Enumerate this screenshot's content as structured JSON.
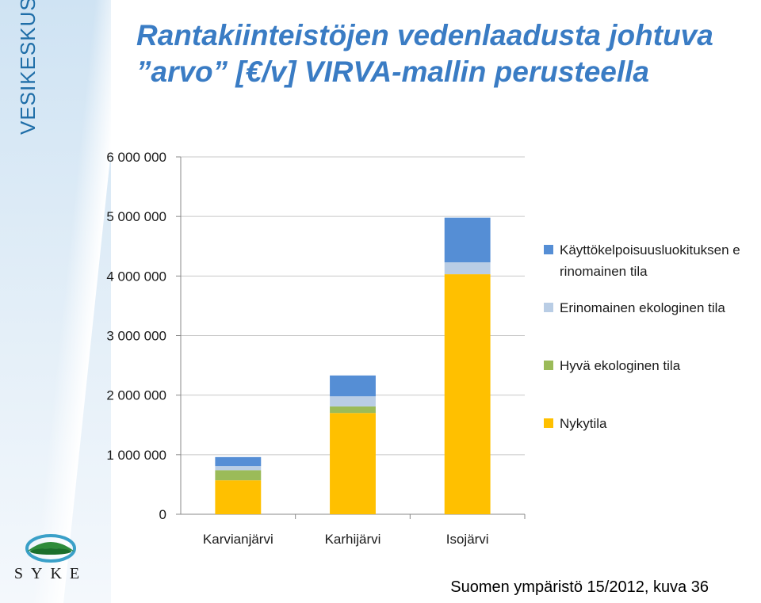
{
  "sidebar": {
    "brand": "VESIKESKUS"
  },
  "title": "Rantakiinteistöjen vedenlaadusta johtuva ”arvo” [€/v] VIRVA-mallin perusteella",
  "logo": {
    "text": "SYKE"
  },
  "caption": "Suomen ympäristö 15/2012, kuva 36",
  "chart_data": {
    "type": "bar",
    "stacked": true,
    "categories": [
      "Karvianjärvi",
      "Karhijärvi",
      "Isojärvi"
    ],
    "ylim": [
      0,
      6000000
    ],
    "yticks": [
      0,
      1000000,
      2000000,
      3000000,
      4000000,
      5000000,
      6000000
    ],
    "ytick_labels": [
      "0",
      "1 000 000",
      "2 000 000",
      "3 000 000",
      "4 000 000",
      "5 000 000",
      "6 000 000"
    ],
    "grid": true,
    "legend_position": "right",
    "series": [
      {
        "name": "Nykytila",
        "color": "#ffc000",
        "values": [
          570000,
          1700000,
          4030000
        ]
      },
      {
        "name": "Hyvä ekologinen tila",
        "color": "#9bbb59",
        "values": [
          170000,
          110000,
          0
        ]
      },
      {
        "name": "Erinomainen ekologinen tila",
        "color": "#b9cde5",
        "values": [
          70000,
          170000,
          200000
        ]
      },
      {
        "name": "Käyttökelpoisuusluokituksen erinomainen tila",
        "color": "#558ed5",
        "values": [
          150000,
          350000,
          750000
        ]
      }
    ]
  }
}
